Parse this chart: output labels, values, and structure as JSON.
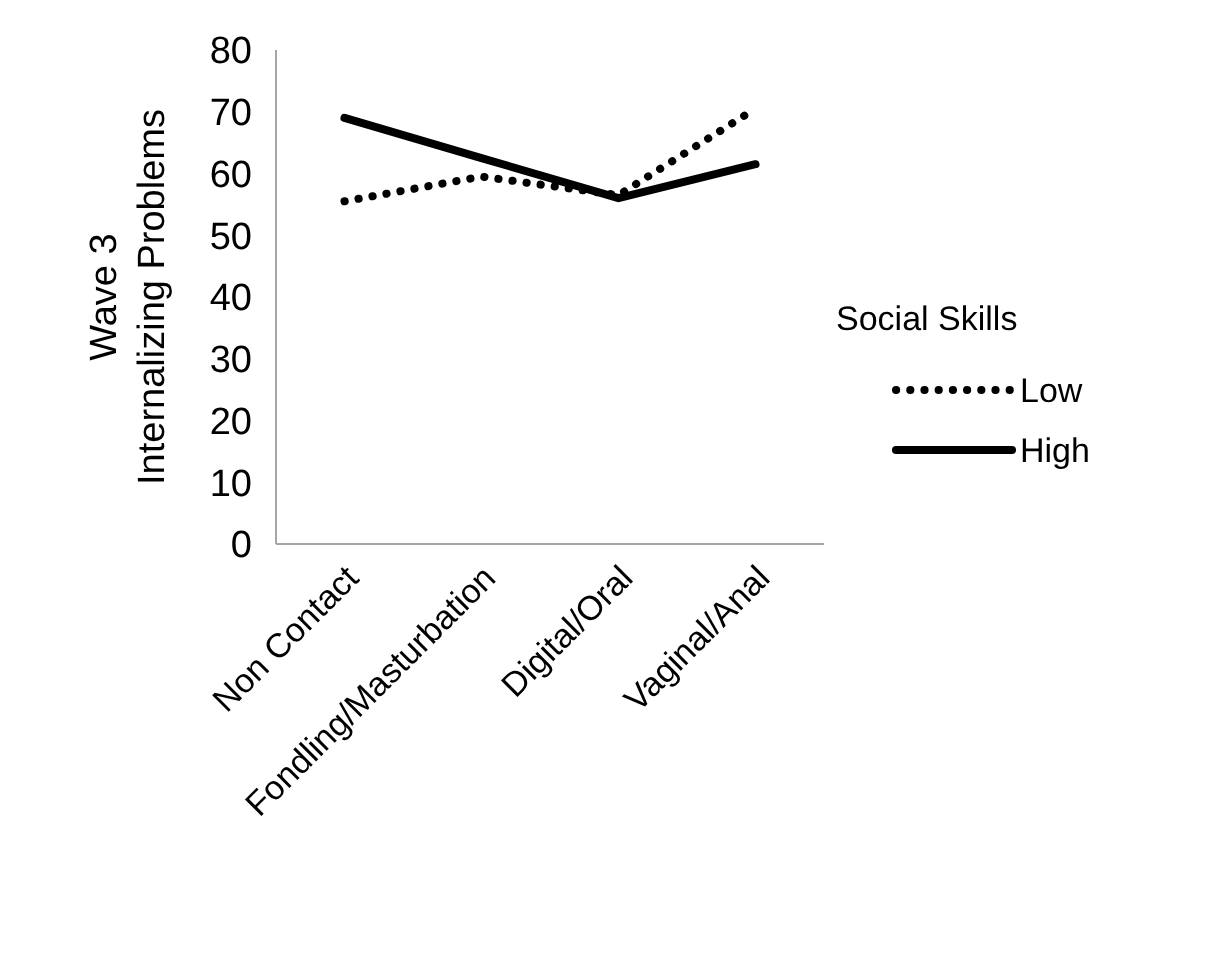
{
  "chart_data": {
    "type": "line",
    "ylabel": "Wave 3\nInternalizing Problems",
    "categories": [
      "Non Contact",
      "Fondling/Masturbation",
      "Digital/Oral",
      "Vaginal/Anal"
    ],
    "series": [
      {
        "name": "Low",
        "color": "#000000",
        "line_style": "dotted",
        "values": [
          55.5,
          59.5,
          56.5,
          70.5
        ]
      },
      {
        "name": "High",
        "color": "#000000",
        "line_style": "solid",
        "values": [
          69,
          62.5,
          56,
          61.5
        ]
      }
    ],
    "ylim": [
      0,
      80
    ],
    "yticks": [
      0,
      10,
      20,
      30,
      40,
      50,
      60,
      70,
      80
    ],
    "legend_title": "Social Skills",
    "legend": "right",
    "grid": false,
    "marker": "none"
  }
}
